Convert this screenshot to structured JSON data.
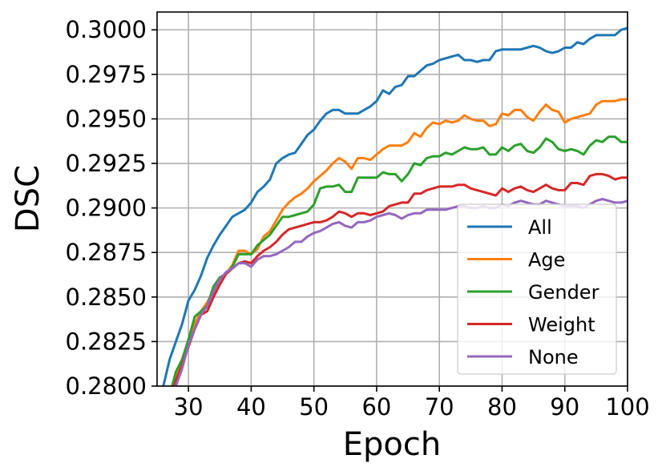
{
  "chart_data": {
    "type": "line",
    "xlabel": "Epoch",
    "ylabel": "DSC",
    "xlim": [
      25,
      100
    ],
    "ylim": [
      0.28,
      0.301
    ],
    "xticks": [
      30,
      40,
      50,
      60,
      70,
      80,
      90,
      100
    ],
    "xtick_labels": [
      "30",
      "40",
      "50",
      "60",
      "70",
      "80",
      "90",
      "100"
    ],
    "yticks": [
      0.28,
      0.2825,
      0.285,
      0.2875,
      0.29,
      0.2925,
      0.295,
      0.2975,
      0.3
    ],
    "ytick_labels": [
      "0.2800",
      "0.2825",
      "0.2850",
      "0.2875",
      "0.2900",
      "0.2925",
      "0.2950",
      "0.2975",
      "0.3000"
    ],
    "grid": true,
    "legend_position": "lower-right",
    "x": [
      26,
      27,
      28,
      29,
      30,
      31,
      32,
      33,
      34,
      35,
      36,
      37,
      38,
      39,
      40,
      41,
      42,
      43,
      44,
      45,
      46,
      47,
      48,
      49,
      50,
      51,
      52,
      53,
      54,
      55,
      56,
      57,
      58,
      59,
      60,
      61,
      62,
      63,
      64,
      65,
      66,
      67,
      68,
      69,
      70,
      71,
      72,
      73,
      74,
      75,
      76,
      77,
      78,
      79,
      80,
      81,
      82,
      83,
      84,
      85,
      86,
      87,
      88,
      89,
      90,
      91,
      92,
      93,
      94,
      95,
      96,
      97,
      98,
      99,
      100
    ],
    "series": [
      {
        "name": "All",
        "color": "#1f77b4",
        "values": [
          0.28,
          0.2815,
          0.2825,
          0.2835,
          0.2848,
          0.2854,
          0.2862,
          0.2872,
          0.2879,
          0.2885,
          0.289,
          0.2895,
          0.2897,
          0.2899,
          0.2903,
          0.2909,
          0.2912,
          0.2916,
          0.2925,
          0.2928,
          0.293,
          0.2931,
          0.2936,
          0.2941,
          0.2944,
          0.2949,
          0.2953,
          0.2955,
          0.2955,
          0.2953,
          0.2953,
          0.2953,
          0.2955,
          0.2957,
          0.296,
          0.2966,
          0.2964,
          0.2968,
          0.2969,
          0.2974,
          0.2974,
          0.2977,
          0.298,
          0.2981,
          0.2983,
          0.2984,
          0.2985,
          0.2986,
          0.2983,
          0.2983,
          0.2982,
          0.2983,
          0.2983,
          0.2988,
          0.2989,
          0.2989,
          0.2989,
          0.2989,
          0.299,
          0.2991,
          0.299,
          0.2988,
          0.2987,
          0.2988,
          0.299,
          0.299,
          0.2993,
          0.2992,
          0.2995,
          0.2997,
          0.2997,
          0.2997,
          0.2997,
          0.3,
          0.3001
        ]
      },
      {
        "name": "Age",
        "color": "#ff7f0e",
        "values": [
          0.2785,
          0.2795,
          0.2805,
          0.2815,
          0.2826,
          0.2835,
          0.2842,
          0.2847,
          0.2854,
          0.286,
          0.2863,
          0.2868,
          0.2876,
          0.2876,
          0.2874,
          0.2877,
          0.2884,
          0.2887,
          0.2893,
          0.2899,
          0.2903,
          0.2906,
          0.2908,
          0.2911,
          0.2915,
          0.2918,
          0.2921,
          0.2925,
          0.2928,
          0.2926,
          0.2922,
          0.2928,
          0.2928,
          0.2927,
          0.293,
          0.2933,
          0.2935,
          0.2935,
          0.2935,
          0.2937,
          0.2942,
          0.294,
          0.2945,
          0.2948,
          0.2947,
          0.2949,
          0.2948,
          0.2949,
          0.2952,
          0.295,
          0.2949,
          0.2949,
          0.2946,
          0.2947,
          0.2953,
          0.2952,
          0.2955,
          0.2955,
          0.2951,
          0.2949,
          0.2954,
          0.2958,
          0.2955,
          0.2954,
          0.2948,
          0.295,
          0.2951,
          0.2952,
          0.2953,
          0.2958,
          0.296,
          0.296,
          0.296,
          0.2961,
          0.2961
        ]
      },
      {
        "name": "Gender",
        "color": "#2ca02c",
        "values": [
          0.2785,
          0.2795,
          0.2808,
          0.2815,
          0.2826,
          0.2839,
          0.2842,
          0.2845,
          0.2856,
          0.2861,
          0.2863,
          0.2867,
          0.2874,
          0.2874,
          0.2874,
          0.2879,
          0.2882,
          0.2885,
          0.289,
          0.2895,
          0.2895,
          0.2896,
          0.2897,
          0.2898,
          0.2902,
          0.2911,
          0.2912,
          0.2912,
          0.2913,
          0.2909,
          0.2909,
          0.2917,
          0.2917,
          0.2917,
          0.2917,
          0.292,
          0.2919,
          0.2919,
          0.2915,
          0.2919,
          0.2925,
          0.2924,
          0.2928,
          0.2929,
          0.2929,
          0.2931,
          0.293,
          0.2932,
          0.2934,
          0.2933,
          0.2933,
          0.2934,
          0.293,
          0.293,
          0.2934,
          0.2932,
          0.2935,
          0.2936,
          0.2932,
          0.2931,
          0.2934,
          0.2939,
          0.2937,
          0.2933,
          0.2932,
          0.2933,
          0.2932,
          0.293,
          0.2935,
          0.2938,
          0.2937,
          0.294,
          0.294,
          0.2937,
          0.2937
        ]
      },
      {
        "name": "Weight",
        "color": "#d62728",
        "values": [
          0.2775,
          0.2792,
          0.2803,
          0.2812,
          0.2822,
          0.2832,
          0.284,
          0.2842,
          0.285,
          0.2857,
          0.2863,
          0.2866,
          0.2869,
          0.287,
          0.2869,
          0.2873,
          0.2876,
          0.2878,
          0.2881,
          0.2885,
          0.2888,
          0.2889,
          0.289,
          0.2891,
          0.2892,
          0.2892,
          0.2893,
          0.2895,
          0.2898,
          0.2897,
          0.2895,
          0.2897,
          0.2897,
          0.2896,
          0.2897,
          0.2898,
          0.2901,
          0.2902,
          0.2903,
          0.2903,
          0.2908,
          0.2908,
          0.291,
          0.2911,
          0.2912,
          0.2912,
          0.2912,
          0.2913,
          0.2913,
          0.2911,
          0.291,
          0.2909,
          0.2908,
          0.2907,
          0.2911,
          0.2909,
          0.2911,
          0.2912,
          0.291,
          0.2909,
          0.2911,
          0.2913,
          0.2911,
          0.291,
          0.291,
          0.2914,
          0.2914,
          0.2913,
          0.2918,
          0.2919,
          0.2919,
          0.2918,
          0.2916,
          0.2917,
          0.2917
        ]
      },
      {
        "name": "None",
        "color": "#9467bd",
        "values": [
          0.2775,
          0.279,
          0.28,
          0.281,
          0.2823,
          0.2832,
          0.284,
          0.2845,
          0.2853,
          0.286,
          0.2864,
          0.2866,
          0.2869,
          0.2869,
          0.2867,
          0.2871,
          0.2873,
          0.2873,
          0.2874,
          0.2876,
          0.2878,
          0.2881,
          0.2881,
          0.2884,
          0.2886,
          0.2887,
          0.2889,
          0.2891,
          0.2892,
          0.289,
          0.2889,
          0.2892,
          0.2892,
          0.2893,
          0.2895,
          0.2896,
          0.2897,
          0.2896,
          0.2894,
          0.2896,
          0.2897,
          0.2897,
          0.2899,
          0.2899,
          0.2899,
          0.2899,
          0.29,
          0.2901,
          0.2901,
          0.29,
          0.29,
          0.2901,
          0.29,
          0.29,
          0.2902,
          0.2901,
          0.2903,
          0.2904,
          0.2903,
          0.2902,
          0.2902,
          0.2904,
          0.2903,
          0.2902,
          0.2901,
          0.2901,
          0.2901,
          0.29,
          0.2902,
          0.2904,
          0.2905,
          0.2904,
          0.2903,
          0.2903,
          0.2904
        ]
      }
    ]
  }
}
